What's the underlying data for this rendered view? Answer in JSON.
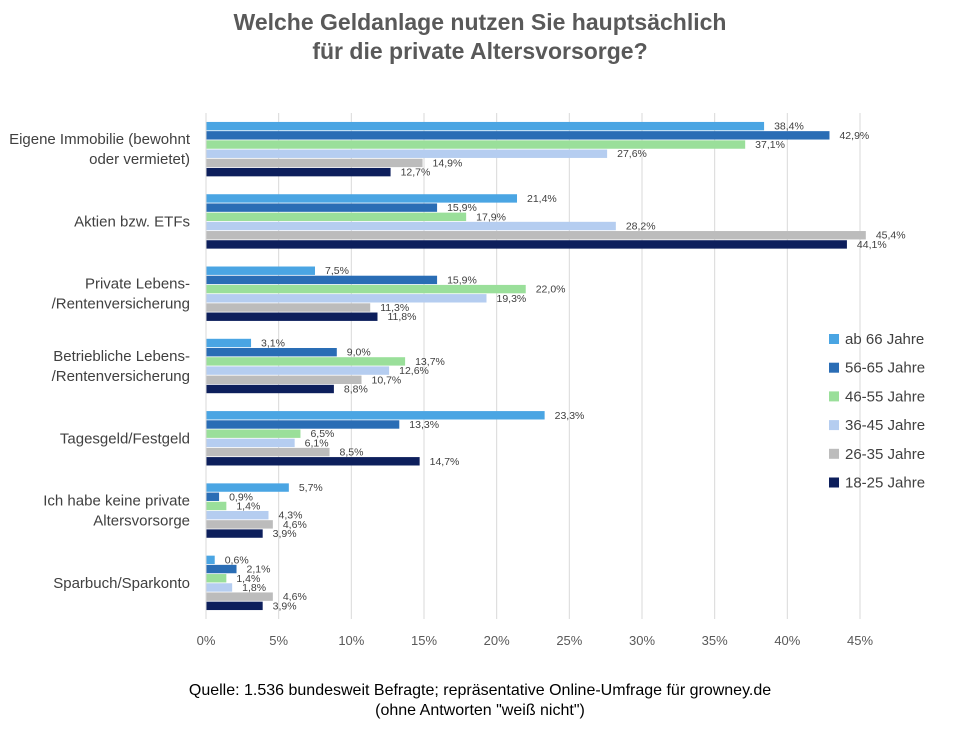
{
  "chart_data": {
    "type": "bar",
    "orientation": "horizontal",
    "title_lines": [
      "Welche Geldanlage nutzen Sie hauptsächlich",
      "für die private Altersvorsorge?"
    ],
    "categories": [
      [
        "Eigene Immobilie (bewohnt",
        "oder vermietet)"
      ],
      [
        "Aktien bzw. ETFs"
      ],
      [
        "Private Lebens-",
        "/Rentenversicherung"
      ],
      [
        "Betriebliche Lebens-",
        "/Rentenversicherung"
      ],
      [
        "Tagesgeld/Festgeld"
      ],
      [
        "Ich habe keine private",
        "Altersvorsorge"
      ],
      [
        "Sparbuch/Sparkonto"
      ]
    ],
    "series": [
      {
        "name": "ab 66 Jahre",
        "color": "#4aa5e3",
        "values": [
          38.4,
          21.4,
          7.5,
          3.1,
          23.3,
          5.7,
          0.6
        ],
        "labels": [
          "38,4%",
          "21,4%",
          "7,5%",
          "3,1%",
          "23,3%",
          "5,7%",
          "0,6%"
        ]
      },
      {
        "name": "56-65 Jahre",
        "color": "#2a6db5",
        "values": [
          42.9,
          15.9,
          15.9,
          9.0,
          13.3,
          0.9,
          2.1
        ],
        "labels": [
          "42,9%",
          "15,9%",
          "15,9%",
          "9,0%",
          "13,3%",
          "0,9%",
          "2,1%"
        ]
      },
      {
        "name": "46-55 Jahre",
        "color": "#9adf9a",
        "values": [
          37.1,
          17.9,
          22.0,
          13.7,
          6.5,
          1.4,
          1.4
        ],
        "labels": [
          "37,1%",
          "17,9%",
          "22,0%",
          "13,7%",
          "6,5%",
          "1,4%",
          "1,4%"
        ]
      },
      {
        "name": "36-45 Jahre",
        "color": "#b5cdf0",
        "values": [
          27.6,
          28.2,
          19.3,
          12.6,
          6.1,
          4.3,
          1.8
        ],
        "labels": [
          "27,6%",
          "28,2%",
          "19,3%",
          "12,6%",
          "6,1%",
          "4,3%",
          "1,8%"
        ]
      },
      {
        "name": "26-35 Jahre",
        "color": "#bcbcbc",
        "values": [
          14.9,
          45.4,
          11.3,
          10.7,
          8.5,
          4.6,
          4.6
        ],
        "labels": [
          "14,9%",
          "45,4%",
          "11,3%",
          "10,7%",
          "8,5%",
          "4,6%",
          "4,6%"
        ]
      },
      {
        "name": "18-25 Jahre",
        "color": "#0d1f5c",
        "values": [
          12.7,
          44.1,
          11.8,
          8.8,
          14.7,
          3.9,
          3.9
        ],
        "labels": [
          "12,7%",
          "44,1%",
          "11,8%",
          "8,8%",
          "14,7%",
          "3,9%",
          "3,9%"
        ]
      }
    ],
    "xlim": [
      0,
      45
    ],
    "xticks": [
      0,
      5,
      10,
      15,
      20,
      25,
      30,
      35,
      40,
      45
    ],
    "xtick_labels": [
      "0%",
      "5%",
      "10%",
      "15%",
      "20%",
      "25%",
      "30%",
      "35%",
      "40%",
      "45%"
    ],
    "gridlines": "vertical",
    "legend_position": "right",
    "legend_order": [
      0,
      1,
      2,
      3,
      4,
      5
    ]
  },
  "source": {
    "line1": "Quelle: 1.536 bundesweit Befragte; repräsentative Online-Umfrage für growney.de",
    "line2": "(ohne Antworten \"weiß nicht\")"
  }
}
